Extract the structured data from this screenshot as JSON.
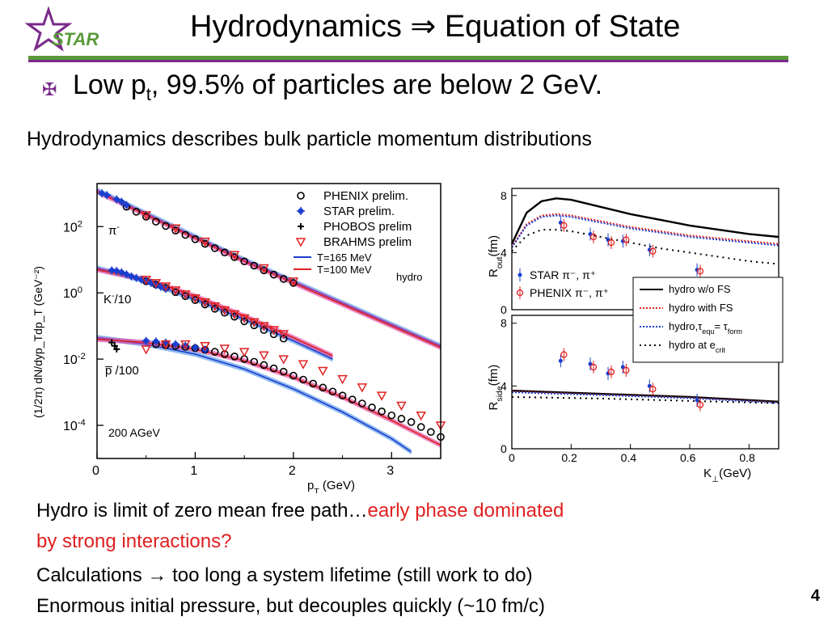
{
  "header": {
    "logo_text": "STAR",
    "title": "Hydrodynamics  ⇒ Equation of State"
  },
  "bullet": {
    "icon": "cross-bullet-icon",
    "text_prefix": "Low p",
    "text_sub": "t",
    "text_suffix": ", 99.5% of particles are below 2 GeV."
  },
  "subheading": "Hydrodynamics describes bulk particle momentum distributions",
  "footer": {
    "line1_black": "Hydro is limit of zero mean free path…",
    "line1_red": "early phase dominated",
    "line2_red": "by strong interactions?",
    "line3_prefix": "Calculations ",
    "line3_arrow": "→",
    "line3_suffix": " too long a system lifetime (still work to do)",
    "line4": "Enormous initial pressure, but decouples quickly (~10 fm/c)",
    "page_number": "4"
  },
  "colors": {
    "accent_green": "#5a9a3a",
    "accent_purple": "#7a2a8a",
    "highlight_red": "#e02020"
  },
  "chart_data": [
    {
      "type": "scatter",
      "xlabel": "p",
      "xlabel_sub": "T",
      "xlabel_unit": " (GeV)",
      "ylabel": "(1/2π) dN/dyp_Tdp_T (GeV⁻²)",
      "xlim": [
        0,
        3.5
      ],
      "ylim_log10": [
        -5,
        3.3
      ],
      "yscale": "log",
      "xticks": [
        "0",
        "1",
        "2",
        "3"
      ],
      "yticks": [
        {
          "label_base": "10",
          "label_exp": "2",
          "log": 2
        },
        {
          "label_base": "10",
          "label_exp": "0",
          "log": 0
        },
        {
          "label_base": "10",
          "label_exp": "-2",
          "log": -2
        },
        {
          "label_base": "10",
          "label_exp": "-4",
          "log": -4
        }
      ],
      "annotation": "200 AGeV",
      "curve_labels": [
        {
          "base": "π",
          "sup": "-",
          "suffix": ""
        },
        {
          "base": "K",
          "sup": "-",
          "suffix": "/10"
        },
        {
          "base": "p̅",
          "sup": "",
          "suffix": " /100"
        }
      ],
      "legend": [
        {
          "label": "PHENIX prelim.",
          "marker": "circle"
        },
        {
          "label": "STAR prelim.",
          "marker": "star"
        },
        {
          "label": "PHOBOS prelim",
          "marker": "plus"
        },
        {
          "label": "BRAHMS prelim",
          "marker": "triangle-down"
        },
        {
          "label": "T=165 MeV",
          "marker": "line-blue"
        },
        {
          "label": "T=100 MeV",
          "marker": "line-red"
        }
      ],
      "legend_side_label": "hydro",
      "series": [
        {
          "name": "PHENIX prelim.",
          "group": "pi",
          "x": [
            0.3,
            0.4,
            0.5,
            0.6,
            0.7,
            0.8,
            0.9,
            1.0,
            1.1,
            1.2,
            1.3,
            1.4,
            1.5,
            1.6,
            1.7,
            1.8,
            1.9,
            2.0
          ],
          "logy": [
            2.6,
            2.45,
            2.3,
            2.15,
            2.02,
            1.88,
            1.75,
            1.62,
            1.48,
            1.35,
            1.22,
            1.08,
            0.95,
            0.82,
            0.68,
            0.55,
            0.42,
            0.3
          ]
        },
        {
          "name": "STAR prelim.",
          "group": "pi",
          "x": [
            0.05,
            0.1,
            0.2,
            0.25,
            0.3
          ],
          "logy": [
            3.0,
            2.95,
            2.82,
            2.75,
            2.65
          ]
        },
        {
          "name": "BRAHMS prelim",
          "group": "pi",
          "x": [
            0.5,
            0.8,
            1.1,
            1.4,
            1.7,
            2.0
          ],
          "logy": [
            2.35,
            1.95,
            1.55,
            1.15,
            0.75,
            0.35
          ]
        },
        {
          "name": "PHENIX prelim.",
          "group": "K",
          "x": [
            0.5,
            0.6,
            0.7,
            0.8,
            0.9,
            1.0,
            1.1,
            1.2,
            1.3,
            1.4,
            1.5,
            1.6,
            1.7,
            1.8,
            1.9
          ],
          "logy": [
            0.35,
            0.25,
            0.15,
            0.02,
            -0.1,
            -0.22,
            -0.35,
            -0.48,
            -0.6,
            -0.72,
            -0.86,
            -0.98,
            -1.12,
            -1.25,
            -1.38
          ]
        },
        {
          "name": "STAR prelim.",
          "group": "K",
          "x": [
            0.15,
            0.2,
            0.25,
            0.3,
            0.35,
            0.4,
            0.45,
            0.5,
            0.55,
            0.6,
            0.65,
            0.7
          ],
          "logy": [
            0.68,
            0.66,
            0.62,
            0.56,
            0.5,
            0.45,
            0.4,
            0.35,
            0.3,
            0.24,
            0.18,
            0.12
          ]
        },
        {
          "name": "BRAHMS prelim",
          "group": "K",
          "x": [
            0.5,
            0.6,
            0.7,
            0.8,
            0.9,
            1.0,
            1.1,
            1.2,
            1.3,
            1.4,
            1.5,
            1.6,
            1.7,
            1.8,
            1.9
          ],
          "logy": [
            0.4,
            0.3,
            0.2,
            0.08,
            -0.04,
            -0.16,
            -0.28,
            -0.4,
            -0.52,
            -0.64,
            -0.76,
            -0.88,
            -1.0,
            -1.12,
            -1.24
          ]
        },
        {
          "name": "PHENIX prelim.",
          "group": "p",
          "x": [
            0.6,
            0.7,
            0.8,
            0.9,
            1.0,
            1.1,
            1.2,
            1.3,
            1.4,
            1.5,
            1.6,
            1.7,
            1.8,
            1.9,
            2.0,
            2.1,
            2.2,
            2.3,
            2.4,
            2.5,
            2.6,
            2.7,
            2.8,
            2.9,
            3.0,
            3.1,
            3.2,
            3.3,
            3.4,
            3.5
          ],
          "logy": [
            -1.55,
            -1.58,
            -1.6,
            -1.63,
            -1.67,
            -1.72,
            -1.78,
            -1.85,
            -1.92,
            -2.0,
            -2.08,
            -2.18,
            -2.28,
            -2.38,
            -2.5,
            -2.62,
            -2.74,
            -2.86,
            -2.98,
            -3.1,
            -3.22,
            -3.34,
            -3.46,
            -3.58,
            -3.7,
            -3.8,
            -3.9,
            -4.05,
            -4.2,
            -4.35
          ]
        },
        {
          "name": "STAR prelim.",
          "group": "p",
          "x": [
            0.5,
            0.6,
            0.7,
            0.8,
            0.9,
            1.0,
            1.1
          ],
          "logy": [
            -1.45,
            -1.47,
            -1.5,
            -1.55,
            -1.6,
            -1.65,
            -1.72
          ]
        },
        {
          "name": "PHOBOS prelim",
          "group": "p",
          "x": [
            0.15,
            0.18,
            0.2
          ],
          "logy": [
            -1.5,
            -1.6,
            -1.7
          ]
        },
        {
          "name": "BRAHMS prelim",
          "group": "p",
          "x": [
            0.5,
            0.7,
            0.9,
            1.1,
            1.3,
            1.5,
            1.7,
            1.9,
            2.1,
            2.3,
            2.5,
            2.7,
            2.9,
            3.1,
            3.3,
            3.5
          ],
          "logy": [
            -1.7,
            -1.55,
            -1.55,
            -1.6,
            -1.68,
            -1.78,
            -1.88,
            -2.0,
            -2.15,
            -2.35,
            -2.6,
            -2.85,
            -3.1,
            -3.4,
            -3.7,
            -4.0
          ]
        },
        {
          "name": "T=165 MeV",
          "group": "pi",
          "x": [
            0,
            0.5,
            1.0,
            1.5,
            2.0,
            2.5,
            3.0,
            3.5
          ],
          "logy": [
            3.1,
            2.4,
            1.7,
            1.0,
            0.35,
            -0.3,
            -0.95,
            -1.6
          ]
        },
        {
          "name": "T=100 MeV",
          "group": "pi",
          "x": [
            0,
            0.5,
            1.0,
            1.5,
            2.0,
            2.5,
            3.0,
            3.5
          ],
          "logy": [
            3.05,
            2.35,
            1.65,
            0.95,
            0.3,
            -0.35,
            -1.0,
            -1.65
          ]
        },
        {
          "name": "T=165 MeV",
          "group": "K",
          "x": [
            0,
            0.5,
            1.0,
            1.5,
            2.0,
            2.4
          ],
          "logy": [
            0.75,
            0.35,
            -0.2,
            -0.8,
            -1.45,
            -2.0
          ]
        },
        {
          "name": "T=100 MeV",
          "group": "K",
          "x": [
            0,
            0.5,
            1.0,
            1.5,
            2.0,
            2.4
          ],
          "logy": [
            0.7,
            0.4,
            -0.1,
            -0.7,
            -1.35,
            -1.9
          ]
        },
        {
          "name": "T=165 MeV",
          "group": "p",
          "x": [
            0,
            0.5,
            1.0,
            1.5,
            2.0,
            2.5,
            3.0,
            3.2
          ],
          "logy": [
            -1.35,
            -1.55,
            -1.85,
            -2.3,
            -2.9,
            -3.6,
            -4.4,
            -4.8
          ]
        },
        {
          "name": "T=100 MeV",
          "group": "p",
          "x": [
            0,
            0.5,
            1.0,
            1.5,
            2.0,
            2.5,
            3.0,
            3.5
          ],
          "logy": [
            -1.4,
            -1.5,
            -1.7,
            -2.05,
            -2.55,
            -3.15,
            -3.85,
            -4.6
          ]
        }
      ]
    },
    {
      "type": "line",
      "ylabel_base": "R",
      "ylabel_sub": "out",
      "ylabel_unit": "(fm)",
      "ylim": [
        0,
        8.5
      ],
      "yticks": [
        "0",
        "4",
        "8"
      ],
      "xlim": [
        0,
        0.9
      ],
      "legend": [
        {
          "prefix": "STAR ",
          "particles": "π⁻, π⁺",
          "marker": "star-blue"
        },
        {
          "prefix": "PHENIX ",
          "particles": "π⁻, π⁺",
          "marker": "circle-red"
        }
      ],
      "series": [
        {
          "name": "hydro w/o FS",
          "x": [
            0.0,
            0.05,
            0.1,
            0.15,
            0.2,
            0.3,
            0.4,
            0.5,
            0.6,
            0.7,
            0.8,
            0.9
          ],
          "y": [
            4.6,
            6.8,
            7.6,
            7.8,
            7.7,
            7.2,
            6.7,
            6.3,
            5.9,
            5.6,
            5.3,
            5.1
          ]
        },
        {
          "name": "hydro with FS",
          "x": [
            0.0,
            0.05,
            0.1,
            0.15,
            0.2,
            0.3,
            0.4,
            0.5,
            0.6,
            0.7,
            0.8,
            0.9
          ],
          "y": [
            4.4,
            6.0,
            6.6,
            6.7,
            6.6,
            6.2,
            5.8,
            5.5,
            5.2,
            5.0,
            4.8,
            4.6
          ]
        },
        {
          "name": "hydro, τequ = τform",
          "x": [
            0.0,
            0.05,
            0.1,
            0.15,
            0.2,
            0.3,
            0.4,
            0.5,
            0.6,
            0.7,
            0.8,
            0.9
          ],
          "y": [
            4.35,
            5.9,
            6.5,
            6.6,
            6.5,
            6.1,
            5.7,
            5.4,
            5.1,
            4.9,
            4.7,
            4.5
          ]
        },
        {
          "name": "hydro at e_crit",
          "x": [
            0.0,
            0.05,
            0.1,
            0.15,
            0.2,
            0.3,
            0.4,
            0.5,
            0.6,
            0.7,
            0.8,
            0.9
          ],
          "y": [
            4.1,
            5.2,
            5.6,
            5.6,
            5.5,
            5.1,
            4.7,
            4.3,
            4.0,
            3.7,
            3.4,
            3.2
          ]
        },
        {
          "name": "STAR",
          "x": [
            0.17,
            0.27,
            0.33,
            0.38,
            0.47,
            0.63
          ],
          "y": [
            6.1,
            5.3,
            4.9,
            4.8,
            4.2,
            2.8
          ]
        },
        {
          "name": "PHENIX",
          "x": [
            0.17,
            0.27,
            0.33,
            0.38,
            0.47,
            0.63
          ],
          "y": [
            5.9,
            5.1,
            4.7,
            4.9,
            4.1,
            2.7
          ]
        }
      ]
    },
    {
      "type": "line",
      "ylabel_base": "R",
      "ylabel_sub": "side",
      "ylabel_unit": "(fm)",
      "xlabel_base": "K",
      "xlabel_sub": "⊥",
      "xlabel_unit": "(GeV)",
      "xlim": [
        0,
        0.9
      ],
      "ylim": [
        0,
        8.5
      ],
      "xticks": [
        "0",
        "0.2",
        "0.4",
        "0.6",
        "0.8"
      ],
      "yticks": [
        "0",
        "4",
        "8"
      ],
      "legend": [
        {
          "label_main": "hydro w/o FS",
          "style": "solid-black"
        },
        {
          "label_main": "hydro with FS",
          "style": "dotted-red"
        },
        {
          "label_main": "hydro,τ",
          "sub1": "equ",
          "mid": "= τ",
          "sub2": "form",
          "style": "dotted-blue"
        },
        {
          "label_main": "hydro at e",
          "sub1": "crit",
          "style": "dotted-black"
        }
      ],
      "series": [
        {
          "name": "hydro w/o FS",
          "x": [
            0.0,
            0.3,
            0.6,
            0.9
          ],
          "y": [
            3.7,
            3.5,
            3.3,
            3.0
          ]
        },
        {
          "name": "hydro with FS",
          "x": [
            0.0,
            0.3,
            0.6,
            0.9
          ],
          "y": [
            3.65,
            3.45,
            3.25,
            2.95
          ]
        },
        {
          "name": "hydro, τequ = τform",
          "x": [
            0.0,
            0.3,
            0.6,
            0.9
          ],
          "y": [
            3.6,
            3.42,
            3.22,
            2.92
          ]
        },
        {
          "name": "hydro at e_crit",
          "x": [
            0.0,
            0.3,
            0.6,
            0.9
          ],
          "y": [
            3.3,
            3.2,
            3.05,
            2.9
          ]
        },
        {
          "name": "STAR",
          "x": [
            0.17,
            0.27,
            0.33,
            0.38,
            0.47,
            0.63
          ],
          "y": [
            5.6,
            5.4,
            4.8,
            5.2,
            4.0,
            3.1
          ]
        },
        {
          "name": "PHENIX",
          "x": [
            0.17,
            0.27,
            0.33,
            0.38,
            0.47,
            0.63
          ],
          "y": [
            6.0,
            5.2,
            4.9,
            5.0,
            3.8,
            2.8
          ]
        }
      ]
    }
  ]
}
